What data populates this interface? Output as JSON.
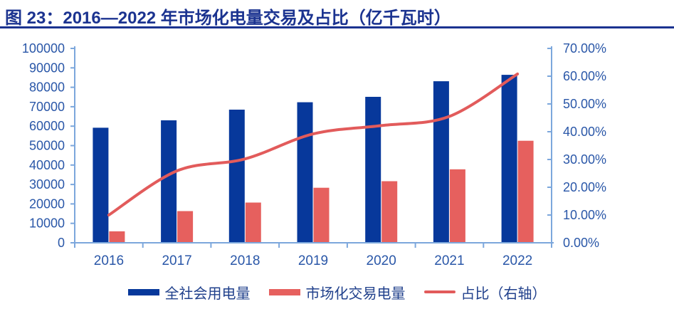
{
  "title": "图 23：2016—2022 年市场化电量交易及占比（亿千瓦时）",
  "colors": {
    "title": "#1B3390",
    "axis_line": "#7CA7DC",
    "tick_label": "#2A57A8",
    "legend_text": "#21418C",
    "bar_total": "#07389B",
    "bar_market": "#E6605E",
    "line_ratio": "#E25B5B",
    "background": "#FFFFFF"
  },
  "chart_data": {
    "type": "bar+line",
    "title": "图 23：2016—2022 年市场化电量交易及占比（亿千瓦时）",
    "categories": [
      "2016",
      "2017",
      "2018",
      "2019",
      "2020",
      "2021",
      "2022"
    ],
    "series": [
      {
        "key": "total",
        "name": "全社会用电量",
        "kind": "bar",
        "axis": "left",
        "color": "#07389B",
        "values": [
          59200,
          63000,
          68500,
          72300,
          75100,
          83100,
          86400
        ]
      },
      {
        "key": "market",
        "name": "市场化交易电量",
        "kind": "bar",
        "axis": "left",
        "color": "#E6605E",
        "values": [
          5900,
          16300,
          20700,
          28300,
          31700,
          37800,
          52500
        ]
      },
      {
        "key": "ratio",
        "name": "占比（右轴）",
        "kind": "line",
        "axis": "right",
        "color": "#E25B5B",
        "values": [
          10.0,
          25.9,
          30.2,
          39.2,
          42.2,
          45.5,
          60.8
        ]
      }
    ],
    "y_left": {
      "min": 0,
      "max": 100000,
      "step": 10000,
      "tick_labels": [
        "0",
        "10000",
        "20000",
        "30000",
        "40000",
        "50000",
        "60000",
        "70000",
        "80000",
        "90000",
        "100000"
      ]
    },
    "y_right": {
      "min": 0,
      "max": 70,
      "step": 10,
      "tick_labels": [
        "0.00%",
        "10.00%",
        "20.00%",
        "30.00%",
        "40.00%",
        "50.00%",
        "60.00%",
        "70.00%"
      ]
    },
    "xlabel": "",
    "ylabel": "",
    "grid": false,
    "legend_position": "bottom"
  }
}
